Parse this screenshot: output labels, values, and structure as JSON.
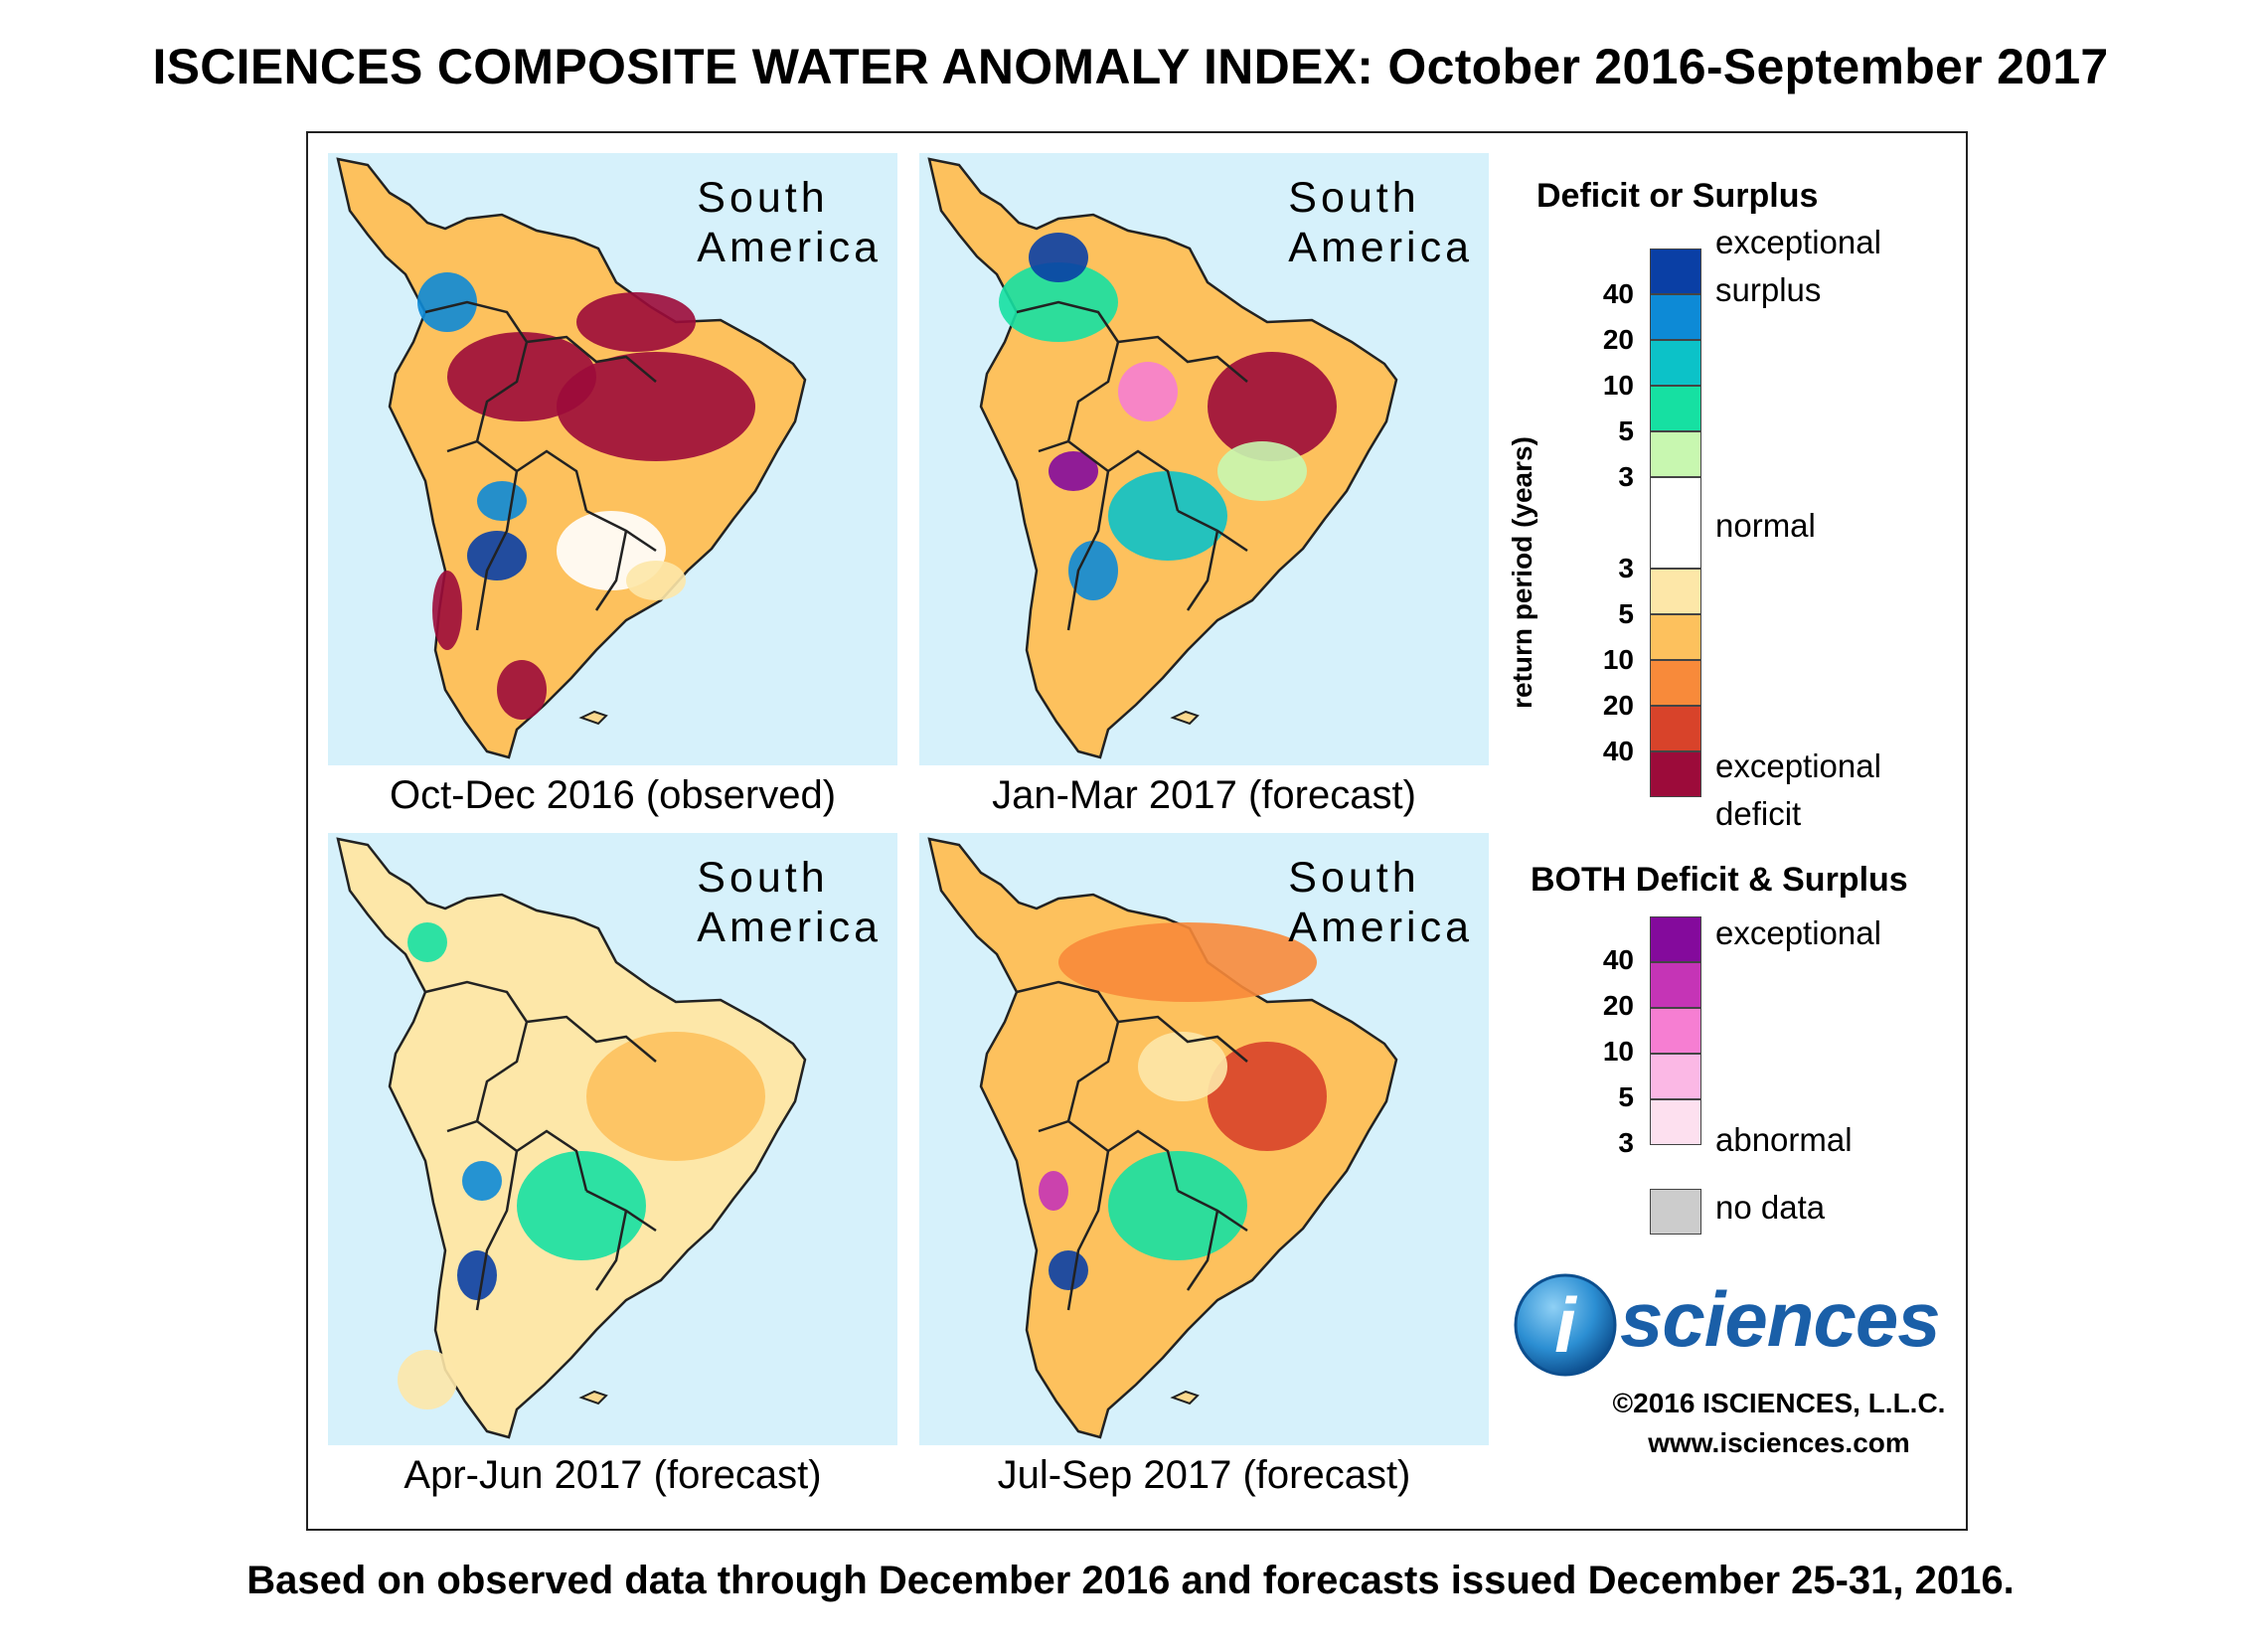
{
  "title": "ISCIENCES COMPOSITE WATER ANOMALY INDEX: October 2016-September 2017",
  "panels": [
    {
      "region_line1": "South",
      "region_line2": "America",
      "caption": "Oct-Dec 2016 (observed)",
      "theme": "deficit"
    },
    {
      "region_line1": "South",
      "region_line2": "America",
      "caption": "Jan-Mar 2017 (forecast)",
      "theme": "mixed"
    },
    {
      "region_line1": "South",
      "region_line2": "America",
      "caption": "Apr-Jun 2017 (forecast)",
      "theme": "mild"
    },
    {
      "region_line1": "South",
      "region_line2": "America",
      "caption": "Jul-Sep 2017 (forecast)",
      "theme": "orange"
    }
  ],
  "legend": {
    "deficit_surplus_title": "Deficit or Surplus",
    "axis_label": "return period (years)",
    "label_exceptional": "exceptional",
    "label_surplus": "surplus",
    "label_normal": "normal",
    "label_deficit": "deficit",
    "surplus_numbers": [
      "40",
      "20",
      "10",
      "5",
      "3"
    ],
    "deficit_numbers": [
      "3",
      "5",
      "10",
      "20",
      "40"
    ],
    "surplus_colors": [
      "#0a3fa5",
      "#0d8ad6",
      "#0cc2c8",
      "#16e0a2",
      "#c8f7b0"
    ],
    "normal_color": "#ffffff",
    "deficit_colors": [
      "#fde7a8",
      "#fdc15d",
      "#f88a3a",
      "#d8432a",
      "#9c0b3a"
    ],
    "both_title": "BOTH Deficit & Surplus",
    "both_numbers": [
      "40",
      "20",
      "10",
      "5",
      "3"
    ],
    "both_colors": [
      "#840a9c",
      "#c534b6",
      "#f67ed2",
      "#fbb8e5",
      "#fde0ef"
    ],
    "label_abnormal": "abnormal",
    "label_no_data": "no data",
    "no_data_color": "#cccccc"
  },
  "logo_text": "sciences",
  "logo_letter": "i",
  "copyright": "©2016 ISCIENCES, L.L.C.",
  "website": "www.isciences.com",
  "footer": "Based on observed data through December 2016 and forecasts issued December 25-31, 2016."
}
